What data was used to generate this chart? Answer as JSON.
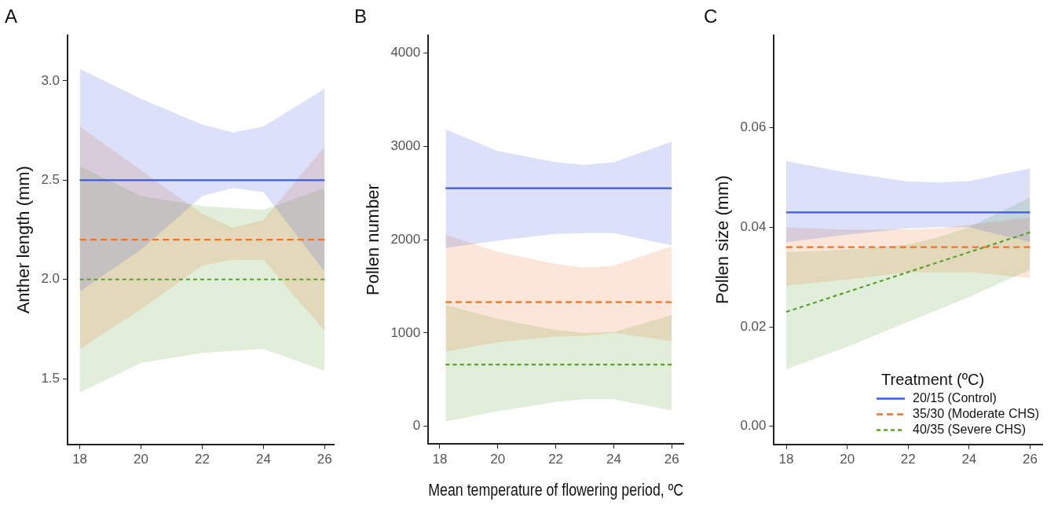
{
  "chart_data": [
    {
      "type": "line",
      "title": "A",
      "ylabel": "Anther length (mm)",
      "xlim": [
        17.6,
        26.3
      ],
      "ylim": [
        1.17,
        3.23
      ],
      "xticks": [
        18,
        20,
        22,
        24,
        26
      ],
      "yticks": [
        {
          "value": 1.5,
          "label": "1.5"
        },
        {
          "value": 2,
          "label": "2.0"
        },
        {
          "value": 2.5,
          "label": "2.5"
        },
        {
          "value": 3,
          "label": "3.0"
        }
      ],
      "grid": false,
      "marker": "none",
      "series": [
        {
          "color": "#3b5bdb",
          "line_style": "solid",
          "x": [
            18,
            20,
            22,
            23,
            24,
            26
          ],
          "values": [
            2.5,
            2.5,
            2.5,
            2.5,
            2.5,
            2.5
          ],
          "upper": [
            3.06,
            2.91,
            2.78,
            2.74,
            2.77,
            2.96
          ],
          "lower": [
            1.94,
            2.15,
            2.42,
            2.46,
            2.44,
            2.04
          ]
        },
        {
          "color": "#e8762c",
          "line_style": "dashed",
          "x": [
            18,
            20,
            22,
            23,
            24,
            26
          ],
          "values": [
            2.2,
            2.2,
            2.2,
            2.2,
            2.2,
            2.2
          ],
          "upper": [
            2.77,
            2.55,
            2.33,
            2.26,
            2.3,
            2.67
          ],
          "lower": [
            1.65,
            1.85,
            2.07,
            2.1,
            2.1,
            1.74
          ]
        },
        {
          "color": "#5aa02c",
          "line_style": "dotted",
          "x": [
            18,
            20,
            22,
            23,
            24,
            26
          ],
          "values": [
            2.0,
            2.0,
            2.0,
            2.0,
            2.0,
            2.0
          ],
          "upper": [
            2.57,
            2.42,
            2.37,
            2.36,
            2.35,
            2.46
          ],
          "lower": [
            1.43,
            1.58,
            1.63,
            1.64,
            1.65,
            1.54
          ]
        }
      ]
    },
    {
      "type": "line",
      "title": "B",
      "xlabel": "Mean temperature of flowering period, ºC",
      "ylabel": "Pollen number",
      "xlim": [
        17.6,
        26.4
      ],
      "ylim": [
        -190,
        4190
      ],
      "xticks": [
        18,
        20,
        22,
        24,
        26
      ],
      "yticks": [
        0,
        1000,
        2000,
        3000,
        4000
      ],
      "grid": false,
      "marker": "none",
      "series": [
        {
          "color": "#3b5bdb",
          "line_style": "solid",
          "x": [
            18.2,
            20,
            22,
            23,
            24,
            26
          ],
          "values": [
            2550,
            2550,
            2550,
            2550,
            2550,
            2550
          ],
          "upper": [
            3180,
            2950,
            2830,
            2800,
            2830,
            3050
          ],
          "lower": [
            1910,
            1990,
            2060,
            2070,
            2070,
            1940
          ]
        },
        {
          "color": "#e8762c",
          "line_style": "dashed",
          "x": [
            18.2,
            20,
            22,
            23,
            24,
            26
          ],
          "values": [
            1330,
            1330,
            1330,
            1330,
            1330,
            1330
          ],
          "upper": [
            2050,
            1870,
            1740,
            1700,
            1720,
            1930
          ],
          "lower": [
            800,
            900,
            960,
            970,
            1000,
            910
          ]
        },
        {
          "color": "#5aa02c",
          "line_style": "dotted",
          "x": [
            18.2,
            20,
            22,
            23,
            24,
            26
          ],
          "values": [
            660,
            660,
            660,
            660,
            660,
            660
          ],
          "upper": [
            1300,
            1150,
            1030,
            1000,
            1010,
            1190
          ],
          "lower": [
            50,
            160,
            260,
            290,
            290,
            170
          ]
        }
      ]
    },
    {
      "type": "line",
      "title": "C",
      "ylabel": "Pollen size (mm)",
      "legend_title": "Treatment (ºC)",
      "legend": "bottom right",
      "xlim": [
        17.6,
        26.4
      ],
      "ylim": [
        -0.0036,
        0.0786
      ],
      "xticks": [
        18,
        20,
        22,
        24,
        26
      ],
      "yticks": [
        {
          "value": 0,
          "label": "0.00"
        },
        0.02,
        0.04,
        0.06
      ],
      "grid": false,
      "marker": "none",
      "series": [
        {
          "name": "20/15 (Control)",
          "color": "#3b5bdb",
          "line_style": "solid",
          "x": [
            18,
            20,
            22,
            23,
            24,
            26
          ],
          "values": [
            0.043,
            0.043,
            0.043,
            0.043,
            0.043,
            0.043
          ],
          "upper": [
            0.0533,
            0.051,
            0.0492,
            0.049,
            0.0493,
            0.0518
          ],
          "lower": [
            0.037,
            0.0385,
            0.0398,
            0.04,
            0.04,
            0.037
          ]
        },
        {
          "name": "35/30 (Moderate CHS)",
          "color": "#e8762c",
          "line_style": "dashed",
          "x": [
            18,
            20,
            22,
            23,
            24,
            26
          ],
          "values": [
            0.036,
            0.036,
            0.036,
            0.036,
            0.036,
            0.036
          ],
          "upper": [
            0.04,
            0.0395,
            0.0396,
            0.0398,
            0.0405,
            0.042
          ],
          "lower": [
            0.0283,
            0.0295,
            0.031,
            0.031,
            0.031,
            0.0298
          ]
        },
        {
          "name": "40/35 (Severe CHS)",
          "color": "#5aa02c",
          "line_style": "dotted",
          "x": [
            18,
            20,
            22,
            23,
            24,
            26
          ],
          "values": [
            0.023,
            0.027,
            0.031,
            0.033,
            0.035,
            0.039
          ],
          "upper": [
            0.035,
            0.0355,
            0.0365,
            0.038,
            0.04,
            0.046
          ],
          "lower": [
            0.0115,
            0.016,
            0.021,
            0.0235,
            0.026,
            0.0315
          ]
        }
      ]
    }
  ]
}
